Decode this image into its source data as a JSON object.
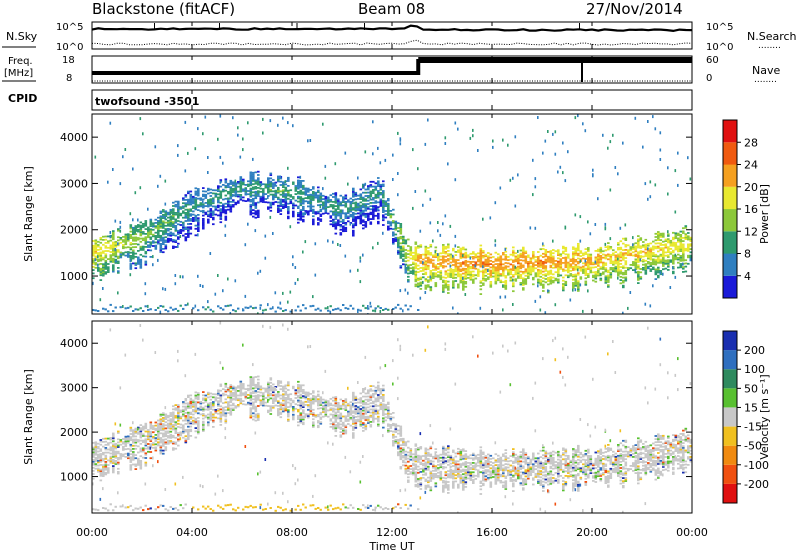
{
  "header": {
    "station": "Blackstone (fitACF)",
    "beam": "Beam 08",
    "date": "27/Nov/2014"
  },
  "strip_labels": {
    "nsky": "N.Sky",
    "nsearch": "N.Search",
    "freq_line1": "Freq.",
    "freq_line2": "[MHz]",
    "nave": "Nave",
    "cpid": "CPID",
    "dots": "........",
    "nsky_tick_top": "10^5",
    "nsky_tick_bottom": "10^0",
    "nsearch_tick_top": "10^5",
    "nsearch_tick_bottom": "10^0",
    "freq_tick_top": "18",
    "freq_tick_bottom": "8",
    "nave_tick_top": "60",
    "nave_tick_bottom": "0"
  },
  "cpid_text": "twofsound -3501",
  "chart_data": [
    {
      "type": "heatmap",
      "title": "Power",
      "ylabel": "Slant Range [km]",
      "xlabel": "Time UT",
      "colorbar_label": "Power [dB]",
      "xlim_hours": [
        0,
        24
      ],
      "x_ticks": [
        "00:00",
        "04:00",
        "08:00",
        "12:00",
        "16:00",
        "20:00",
        "00:00"
      ],
      "ylim": [
        180,
        4500
      ],
      "y_ticks": [
        1000,
        2000,
        3000,
        4000
      ],
      "colorbar_ticks": [
        "4",
        "8",
        "12",
        "16",
        "20",
        "24",
        "28"
      ],
      "colorbar_range": [
        0,
        32
      ],
      "colorbar_colors": [
        "#1a1ad8",
        "#2f7fc0",
        "#2e9a6e",
        "#8cc83a",
        "#e8e830",
        "#f5a020",
        "#f05a10",
        "#e01010"
      ],
      "echo_band": [
        {
          "hour": 0,
          "range": 1500,
          "power": 20
        },
        {
          "hour": 2,
          "range": 1800,
          "power": 14
        },
        {
          "hour": 4,
          "range": 2500,
          "power": 10
        },
        {
          "hour": 6,
          "range": 2900,
          "power": 10
        },
        {
          "hour": 8,
          "range": 2800,
          "power": 11
        },
        {
          "hour": 10,
          "range": 2400,
          "power": 10
        },
        {
          "hour": 11.5,
          "range": 2800,
          "power": 9
        },
        {
          "hour": 12.5,
          "range": 1500,
          "power": 16
        },
        {
          "hour": 13,
          "range": 1300,
          "power": 22
        },
        {
          "hour": 16,
          "range": 1250,
          "power": 24
        },
        {
          "hour": 20,
          "range": 1300,
          "power": 22
        },
        {
          "hour": 24,
          "range": 1700,
          "power": 18
        }
      ]
    },
    {
      "type": "heatmap",
      "title": "Velocity",
      "ylabel": "Slant Range [km]",
      "xlabel": "Time UT",
      "colorbar_label": "Velocity [m s⁻¹]",
      "xlim_hours": [
        0,
        24
      ],
      "x_ticks": [
        "00:00",
        "04:00",
        "08:00",
        "12:00",
        "16:00",
        "20:00",
        "00:00"
      ],
      "ylim": [
        180,
        4500
      ],
      "y_ticks": [
        1000,
        2000,
        3000,
        4000
      ],
      "colorbar_ticks": [
        "200",
        "100",
        "50",
        "15",
        "-15",
        "-50",
        "-100",
        "-200"
      ],
      "colorbar_colors": [
        "#1a2fb0",
        "#2f6fbf",
        "#2e8a5e",
        "#58c030",
        "#c8c8c8",
        "#f0c020",
        "#f08a10",
        "#f05010",
        "#e01010"
      ],
      "dominant_velocity": "-15 to 15"
    }
  ]
}
